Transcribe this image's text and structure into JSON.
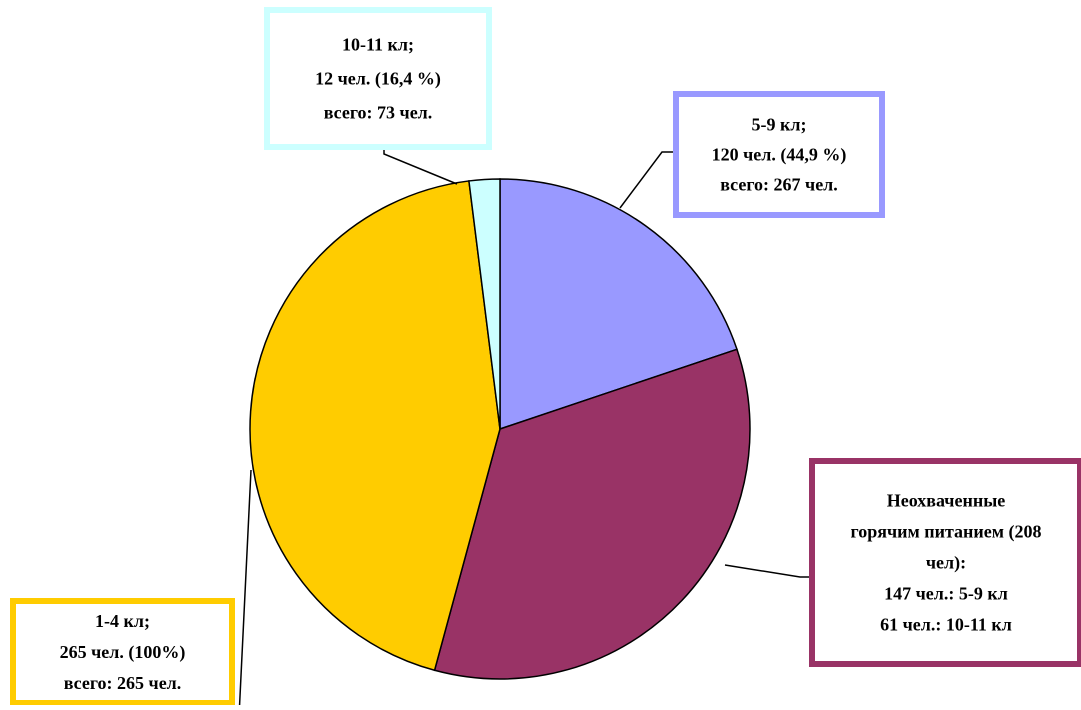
{
  "chart_data": {
    "type": "pie",
    "slices": [
      {
        "name": "5-9 кл",
        "value": 120,
        "color": "#9999ff",
        "label_lines": [
          "5-9 кл;",
          "120 чел. (44,9 %)",
          "всего: 267 чел."
        ]
      },
      {
        "name": "Неохваченные горячим питанием",
        "value": 208,
        "color": "#993366",
        "label_lines": [
          "Неохваченные",
          "горячим питанием (208",
          "чел):",
          "147 чел.: 5-9 кл",
          "61 чел.: 10-11 кл"
        ]
      },
      {
        "name": "1-4 кл",
        "value": 265,
        "color": "#ffcc00",
        "label_lines": [
          "1-4 кл;",
          "265 чел. (100%)",
          "всего: 265 чел."
        ]
      },
      {
        "name": "10-11 кл",
        "value": 12,
        "color": "#ccffff",
        "label_lines": [
          "10-11 кл;",
          "12 чел. (16,4 %)",
          "всего: 73 чел."
        ]
      }
    ],
    "start_angle_deg": 0,
    "direction": "clockwise",
    "title": "",
    "legend": "none"
  }
}
